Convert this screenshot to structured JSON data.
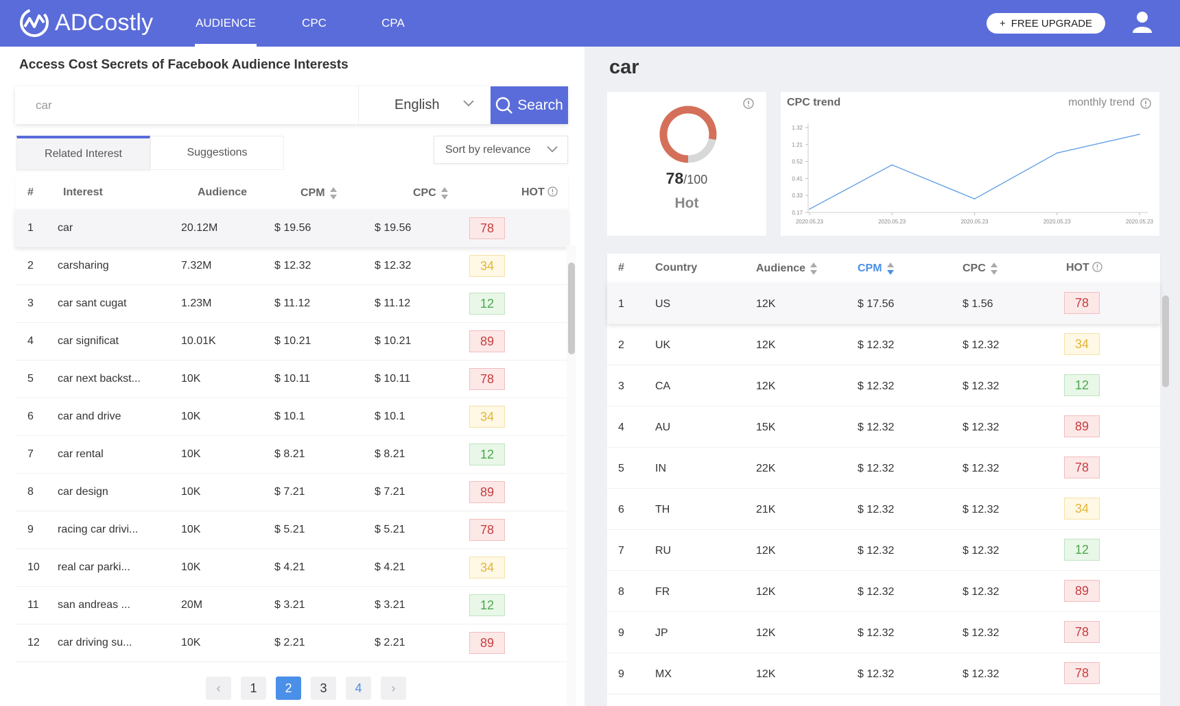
{
  "header": {
    "brand": "ADCostly",
    "nav": [
      "AUDIENCE",
      "CPC",
      "CPA"
    ],
    "upgrade_label": "FREE UPGRADE",
    "upgrade_plus": "+"
  },
  "left": {
    "title": "Access Cost Secrets of Facebook Audience Interests",
    "search": {
      "value": "car",
      "language": "English",
      "button": "Search"
    },
    "tabs": [
      "Related Interest",
      "Suggestions"
    ],
    "sort": "Sort by relevance",
    "table": {
      "headers": {
        "num": "#",
        "interest": "Interest",
        "audience": "Audience",
        "cpm": "CPM",
        "cpc": "CPC",
        "hot": "HOT"
      },
      "rows": [
        {
          "num": "1",
          "interest": "car",
          "audience": "20.12M",
          "cpm": "$ 19.56",
          "cpc": "$ 19.56",
          "hot": "78",
          "level": "red"
        },
        {
          "num": "2",
          "interest": "carsharing",
          "audience": "7.32M",
          "cpm": "$ 12.32",
          "cpc": "$ 12.32",
          "hot": "34",
          "level": "yellow"
        },
        {
          "num": "3",
          "interest": "car sant cugat",
          "audience": "1.23M",
          "cpm": "$ 11.12",
          "cpc": "$ 11.12",
          "hot": "12",
          "level": "green"
        },
        {
          "num": "4",
          "interest": "car significat",
          "audience": "10.01K",
          "cpm": "$ 10.21",
          "cpc": "$ 10.21",
          "hot": "89",
          "level": "red"
        },
        {
          "num": "5",
          "interest": "car next backst...",
          "audience": "10K",
          "cpm": "$ 10.11",
          "cpc": "$ 10.11",
          "hot": "78",
          "level": "red"
        },
        {
          "num": "6",
          "interest": "car and drive",
          "audience": "10K",
          "cpm": "$ 10.1",
          "cpc": "$ 10.1",
          "hot": "34",
          "level": "yellow"
        },
        {
          "num": "7",
          "interest": "car rental",
          "audience": "10K",
          "cpm": "$ 8.21",
          "cpc": "$ 8.21",
          "hot": "12",
          "level": "green"
        },
        {
          "num": "8",
          "interest": "car design",
          "audience": "10K",
          "cpm": "$ 7.21",
          "cpc": "$ 7.21",
          "hot": "89",
          "level": "red"
        },
        {
          "num": "9",
          "interest": "racing car drivi...",
          "audience": "10K",
          "cpm": "$ 5.21",
          "cpc": "$ 5.21",
          "hot": "78",
          "level": "red"
        },
        {
          "num": "10",
          "interest": "real car parki...",
          "audience": "10K",
          "cpm": "$ 4.21",
          "cpc": "$ 4.21",
          "hot": "34",
          "level": "yellow"
        },
        {
          "num": "11",
          "interest": "san andreas ...",
          "audience": "20M",
          "cpm": "$ 3.21",
          "cpc": "$ 3.21",
          "hot": "12",
          "level": "green"
        },
        {
          "num": "12",
          "interest": "car driving su...",
          "audience": "10K",
          "cpm": "$ 2.21",
          "cpc": "$ 2.21",
          "hot": "89",
          "level": "red"
        }
      ]
    },
    "pagination": {
      "prev": "‹",
      "next": "›",
      "pages": [
        "1",
        "2",
        "3",
        "4"
      ],
      "current": "2"
    }
  },
  "right": {
    "title": "car",
    "score": {
      "value": "78",
      "max": "/100",
      "label": "Hot",
      "fraction": 0.78
    },
    "trend": {
      "title": "CPC trend",
      "mode": "monthly trend"
    },
    "table": {
      "headers": {
        "num": "#",
        "country": "Country",
        "audience": "Audience",
        "cpm": "CPM",
        "cpc": "CPC",
        "hot": "HOT"
      },
      "rows": [
        {
          "num": "1",
          "country": "US",
          "audience": "12K",
          "cpm": "$ 17.56",
          "cpc": "$ 1.56",
          "hot": "78",
          "level": "red"
        },
        {
          "num": "2",
          "country": "UK",
          "audience": "12K",
          "cpm": "$ 12.32",
          "cpc": "$ 12.32",
          "hot": "34",
          "level": "yellow"
        },
        {
          "num": "3",
          "country": "CA",
          "audience": "12K",
          "cpm": "$ 12.32",
          "cpc": "$ 12.32",
          "hot": "12",
          "level": "green"
        },
        {
          "num": "4",
          "country": "AU",
          "audience": "15K",
          "cpm": "$ 12.32",
          "cpc": "$ 12.32",
          "hot": "89",
          "level": "red"
        },
        {
          "num": "5",
          "country": "IN",
          "audience": "22K",
          "cpm": "$ 12.32",
          "cpc": "$ 12.32",
          "hot": "78",
          "level": "red"
        },
        {
          "num": "6",
          "country": "TH",
          "audience": "21K",
          "cpm": "$ 12.32",
          "cpc": "$ 12.32",
          "hot": "34",
          "level": "yellow"
        },
        {
          "num": "7",
          "country": "RU",
          "audience": "12K",
          "cpm": "$ 12.32",
          "cpc": "$ 12.32",
          "hot": "12",
          "level": "green"
        },
        {
          "num": "8",
          "country": "FR",
          "audience": "12K",
          "cpm": "$ 12.32",
          "cpc": "$ 12.32",
          "hot": "89",
          "level": "red"
        },
        {
          "num": "9",
          "country": "JP",
          "audience": "12K",
          "cpm": "$ 12.32",
          "cpc": "$ 12.32",
          "hot": "78",
          "level": "red"
        },
        {
          "num": "9",
          "country": "MX",
          "audience": "12K",
          "cpm": "$ 12.32",
          "cpc": "$ 12.32",
          "hot": "78",
          "level": "red"
        }
      ]
    }
  },
  "chart_data": {
    "type": "line",
    "title": "CPC trend",
    "x": [
      "2020.05.23",
      "2020.05.23",
      "2020.05.23",
      "2020.05.23",
      "2020.05.23"
    ],
    "y_ticks": [
      "0.17",
      "0.33",
      "0.41",
      "0.52",
      "1.21",
      "1.32"
    ],
    "series": [
      {
        "values_tick_index": [
          0.2,
          2.8,
          0.8,
          3.5,
          4.6
        ]
      }
    ],
    "grid": false,
    "color": "#5b9be6"
  },
  "colors": {
    "brand": "#5a6cd9",
    "active_page": "#4a8fe8",
    "gauge": "#d4705a",
    "gauge_track": "#d8d8d8"
  }
}
